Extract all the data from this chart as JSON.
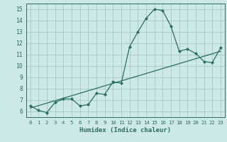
{
  "title": "",
  "xlabel": "Humidex (Indice chaleur)",
  "bg_color": "#cce8e8",
  "grid_color": "#aacccc",
  "line_color": "#2a6e62",
  "xlim": [
    -0.5,
    23.5
  ],
  "ylim": [
    5.5,
    15.5
  ],
  "xticks": [
    0,
    1,
    2,
    3,
    4,
    5,
    6,
    7,
    8,
    9,
    10,
    11,
    12,
    13,
    14,
    15,
    16,
    17,
    18,
    19,
    20,
    21,
    22,
    23
  ],
  "yticks": [
    6,
    7,
    8,
    9,
    10,
    11,
    12,
    13,
    14,
    15
  ],
  "humidex_x": [
    0,
    1,
    2,
    3,
    4,
    5,
    6,
    7,
    8,
    9,
    10,
    11,
    12,
    13,
    14,
    15,
    16,
    17,
    18,
    19,
    20,
    21,
    22,
    23
  ],
  "humidex_y": [
    6.5,
    6.1,
    5.9,
    6.8,
    7.1,
    7.1,
    6.5,
    6.6,
    7.6,
    7.5,
    8.6,
    8.5,
    11.7,
    13.0,
    14.2,
    15.0,
    14.9,
    13.5,
    11.3,
    11.5,
    11.1,
    10.4,
    10.3,
    11.6
  ],
  "trend_x": [
    0,
    23
  ],
  "trend_y": [
    6.3,
    11.3
  ]
}
